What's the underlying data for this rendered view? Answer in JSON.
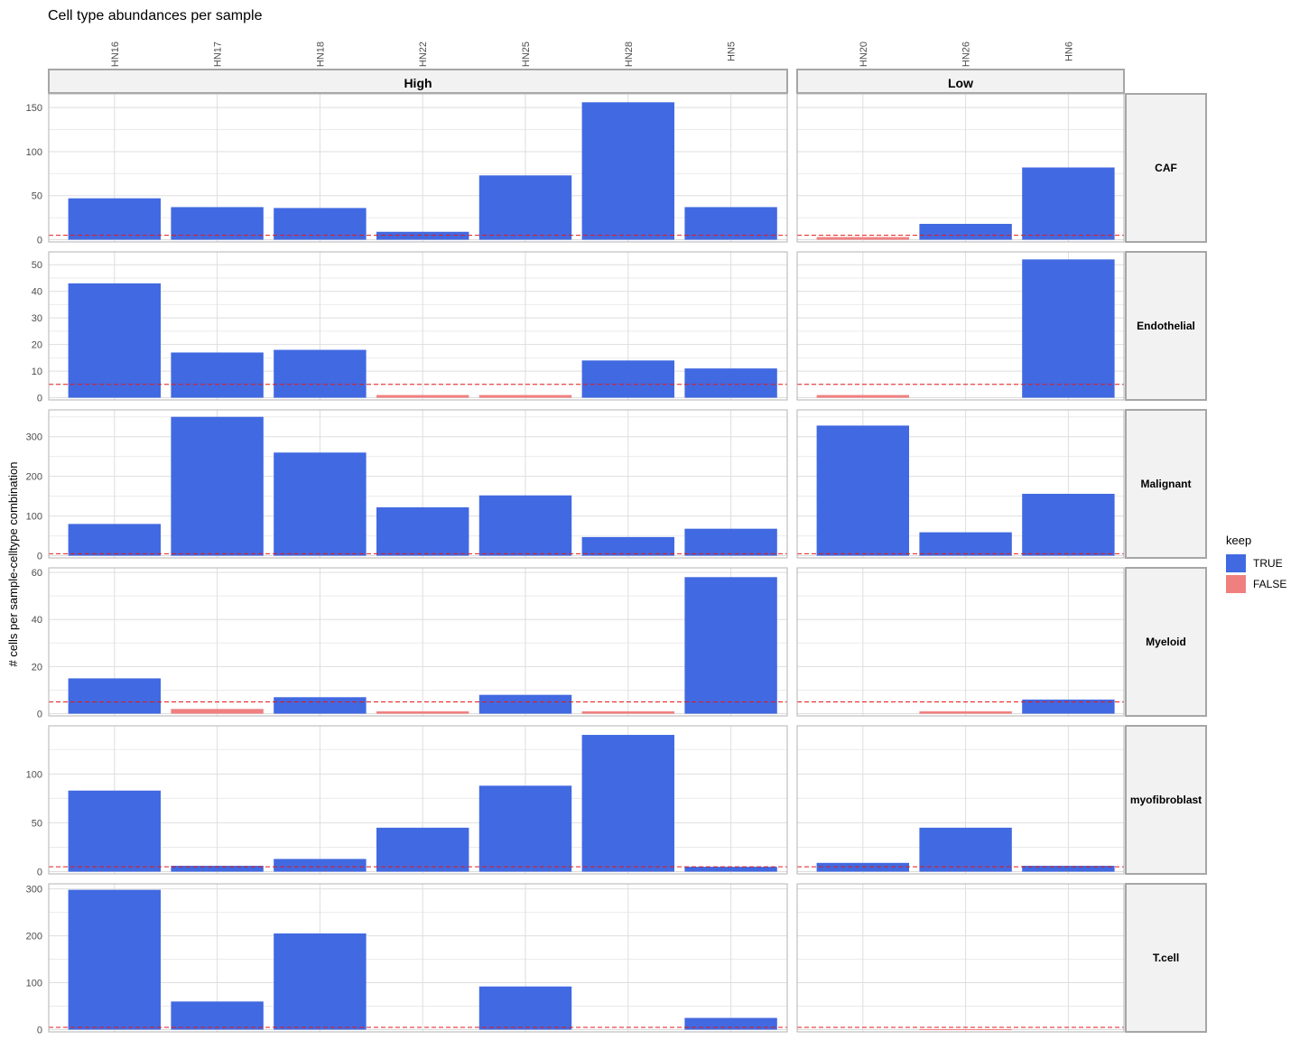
{
  "chart_data": {
    "type": "bar",
    "title": "Cell type abundances per sample",
    "ylabel": "# cells per sample-celltype combination",
    "xlabel": "",
    "threshold": 5,
    "colors": {
      "TRUE": "#4169E1",
      "FALSE": "#F08080",
      "threshold_line": "#E41A1C",
      "strip_bg": "#F2F2F2",
      "grid": "#DEDEDE"
    },
    "legend": {
      "title": "keep",
      "entries": [
        "TRUE",
        "FALSE"
      ],
      "position": "right"
    },
    "column_facets": [
      {
        "label": "High",
        "samples": [
          "HN16",
          "HN17",
          "HN18",
          "HN22",
          "HN25",
          "HN28",
          "HN5"
        ]
      },
      {
        "label": "Low",
        "samples": [
          "HN20",
          "HN26",
          "HN6"
        ]
      }
    ],
    "row_facets": [
      {
        "label": "CAF",
        "ylim": [
          0,
          163
        ],
        "ticks": [
          0,
          50,
          100,
          150
        ],
        "values": {
          "HN16": 47,
          "HN17": 37,
          "HN18": 36,
          "HN22": 9,
          "HN25": 73,
          "HN28": 156,
          "HN5": 37,
          "HN20": 3,
          "HN26": 18,
          "HN6": 82
        }
      },
      {
        "label": "Endothelial",
        "ylim": [
          0,
          54
        ],
        "ticks": [
          0,
          10,
          20,
          30,
          40,
          50
        ],
        "values": {
          "HN16": 43,
          "HN17": 17,
          "HN18": 18,
          "HN22": 1,
          "HN25": 1,
          "HN28": 14,
          "HN5": 11,
          "HN20": 1,
          "HN26": 0,
          "HN6": 52
        }
      },
      {
        "label": "Malignant",
        "ylim": [
          0,
          362
        ],
        "ticks": [
          0,
          100,
          200,
          300
        ],
        "values": {
          "HN16": 80,
          "HN17": 350,
          "HN18": 260,
          "HN22": 122,
          "HN25": 152,
          "HN28": 47,
          "HN5": 68,
          "HN20": 328,
          "HN26": 59,
          "HN6": 156
        }
      },
      {
        "label": "Myeloid",
        "ylim": [
          0,
          61
        ],
        "ticks": [
          0,
          20,
          40,
          60
        ],
        "values": {
          "HN16": 15,
          "HN17": 2,
          "HN18": 7,
          "HN22": 1,
          "HN25": 8,
          "HN28": 1,
          "HN5": 58,
          "HN20": 0,
          "HN26": 1,
          "HN6": 6
        }
      },
      {
        "label": "myofibroblast",
        "ylim": [
          0,
          147
        ],
        "ticks": [
          0,
          50,
          100
        ],
        "values": {
          "HN16": 83,
          "HN17": 6,
          "HN18": 13,
          "HN22": 45,
          "HN25": 88,
          "HN28": 140,
          "HN5": 5,
          "HN20": 9,
          "HN26": 45,
          "HN6": 6
        }
      },
      {
        "label": "T.cell",
        "ylim": [
          0,
          306
        ],
        "ticks": [
          0,
          100,
          200,
          300
        ],
        "values": {
          "HN16": 298,
          "HN17": 60,
          "HN18": 205,
          "HN22": 0,
          "HN25": 92,
          "HN28": 0,
          "HN5": 25,
          "HN20": 0,
          "HN26": 1,
          "HN6": 0
        }
      }
    ]
  }
}
